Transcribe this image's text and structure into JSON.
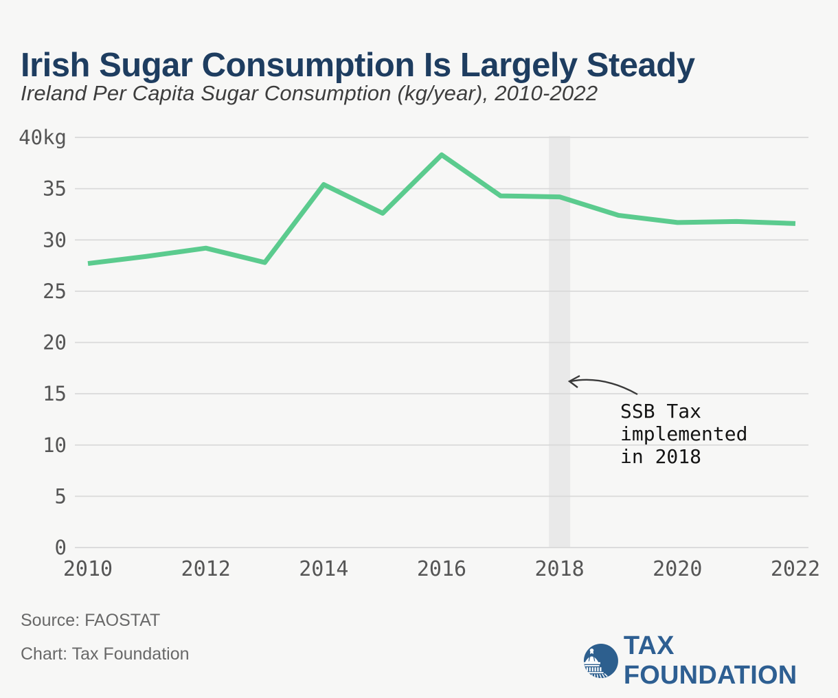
{
  "header": {
    "title": "Irish Sugar Consumption Is Largely Steady",
    "subtitle": "Ireland Per Capita Sugar Consumption (kg/year), 2010-2022"
  },
  "chart_data": {
    "type": "line",
    "title": "Ireland Per Capita Sugar Consumption (kg/year), 2010-2022",
    "x": [
      2010,
      2011,
      2012,
      2013,
      2014,
      2015,
      2016,
      2017,
      2018,
      2019,
      2020,
      2021,
      2022
    ],
    "series": [
      {
        "name": "Ireland per capita sugar consumption (kg/year)",
        "values": [
          27.7,
          28.4,
          29.2,
          27.8,
          35.4,
          32.6,
          38.3,
          34.3,
          34.2,
          32.4,
          31.7,
          31.8,
          31.6
        ]
      }
    ],
    "xlabel": "",
    "ylabel": "",
    "ylim": [
      0,
      40
    ],
    "ytick_step": 5,
    "ytick_labels": [
      "0",
      "5",
      "10",
      "15",
      "20",
      "25",
      "30",
      "35",
      "40kg"
    ],
    "xtick_labels": [
      "2010",
      "2012",
      "2014",
      "2016",
      "2018",
      "2020",
      "2022"
    ],
    "grid": true,
    "legend": "none",
    "line_color": "#5bcb8e",
    "grid_color": "#d9d9d9",
    "tick_color": "#555555",
    "highlight_band": {
      "year": 2018,
      "color": "#e9e9e9"
    },
    "annotation": {
      "text": "SSB Tax implemented in 2018",
      "points_to_year": 2018
    }
  },
  "annotation": {
    "line1": "SSB Tax",
    "line2": "implemented",
    "line3": "in 2018"
  },
  "footer": {
    "source": "Source: FAOSTAT",
    "credit": "Chart: Tax Foundation"
  },
  "logo": {
    "text": "TAX FOUNDATION",
    "color": "#2e5f92"
  }
}
